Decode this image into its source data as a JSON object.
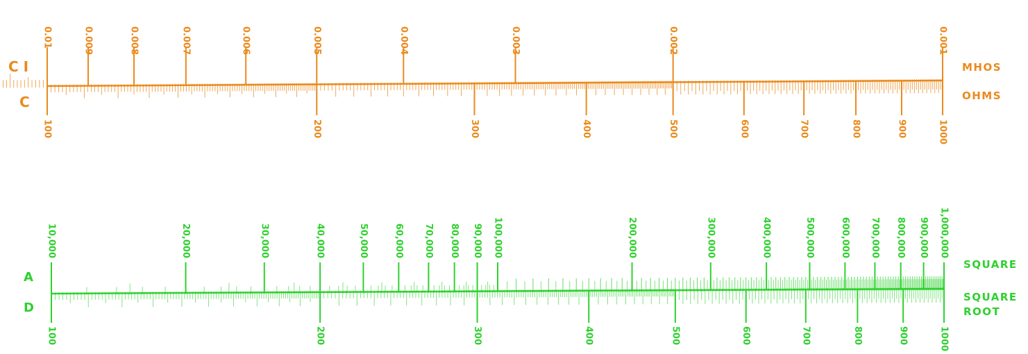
{
  "colors": {
    "orange": "#ea8a1c",
    "green": "#2ed12e",
    "bg": "#ffffff"
  },
  "top_scale": {
    "upper_letter": "C I",
    "lower_letter": "C",
    "upper_unit": "MHOS",
    "lower_unit": "OHMS",
    "upper_labels": [
      "0.01",
      "0.009",
      "0.008",
      "0.007",
      "0.006",
      "0.005",
      "0.004",
      "0.003",
      "0.002",
      "0.001"
    ],
    "upper_values": [
      0.01,
      0.009,
      0.008,
      0.007,
      0.006,
      0.005,
      0.004,
      0.003,
      0.002,
      0.001
    ],
    "lower_labels": [
      "100",
      "200",
      "300",
      "400",
      "500",
      "600",
      "700",
      "800",
      "900",
      "1000"
    ],
    "lower_values": [
      100,
      200,
      300,
      400,
      500,
      600,
      700,
      800,
      900,
      1000
    ]
  },
  "bottom_scale": {
    "upper_letter": "A",
    "lower_letter": "D",
    "upper_unit": "SQUARE",
    "lower_unit_line1": "SQUARE",
    "lower_unit_line2": "ROOT",
    "upper_labels": [
      "10,000",
      "20,000",
      "30,000",
      "40,000",
      "50,000",
      "60,000",
      "70,000",
      "80,000",
      "90,000",
      "100,000",
      "200,000",
      "300,000",
      "400,000",
      "500,000",
      "600,000",
      "700,000",
      "800,000",
      "900,000",
      "1,000,000"
    ],
    "upper_values": [
      10000,
      20000,
      30000,
      40000,
      50000,
      60000,
      70000,
      80000,
      90000,
      100000,
      200000,
      300000,
      400000,
      500000,
      600000,
      700000,
      800000,
      900000,
      1000000
    ],
    "lower_labels": [
      "100",
      "200",
      "300",
      "400",
      "500",
      "600",
      "700",
      "800",
      "900",
      "1000"
    ],
    "lower_values": [
      100,
      200,
      300,
      400,
      500,
      600,
      700,
      800,
      900,
      1000
    ]
  }
}
